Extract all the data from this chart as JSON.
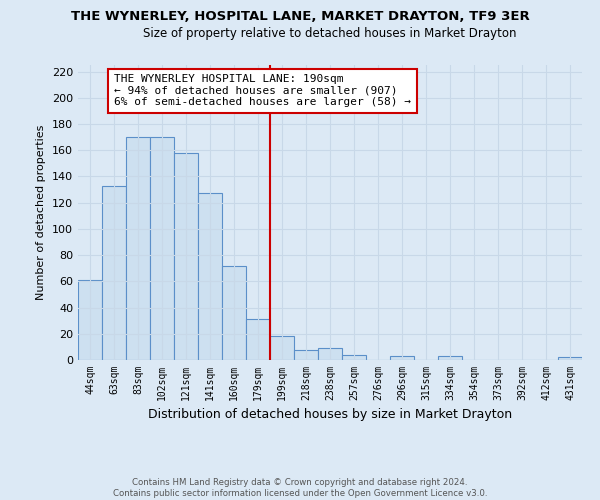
{
  "title": "THE WYNERLEY, HOSPITAL LANE, MARKET DRAYTON, TF9 3ER",
  "subtitle": "Size of property relative to detached houses in Market Drayton",
  "xlabel": "Distribution of detached houses by size in Market Drayton",
  "ylabel": "Number of detached properties",
  "bar_labels": [
    "44sqm",
    "63sqm",
    "83sqm",
    "102sqm",
    "121sqm",
    "141sqm",
    "160sqm",
    "179sqm",
    "199sqm",
    "218sqm",
    "238sqm",
    "257sqm",
    "276sqm",
    "296sqm",
    "315sqm",
    "334sqm",
    "354sqm",
    "373sqm",
    "392sqm",
    "412sqm",
    "431sqm"
  ],
  "bar_values": [
    61,
    133,
    170,
    170,
    158,
    127,
    72,
    31,
    18,
    8,
    9,
    4,
    0,
    3,
    0,
    3,
    0,
    0,
    0,
    0,
    2
  ],
  "bar_color": "#cde0f0",
  "bar_edge_color": "#5b8fc9",
  "reference_line_color": "#cc0000",
  "annotation_text": "THE WYNERLEY HOSPITAL LANE: 190sqm\n← 94% of detached houses are smaller (907)\n6% of semi-detached houses are larger (58) →",
  "annotation_box_facecolor": "white",
  "annotation_box_edgecolor": "#cc0000",
  "ylim": [
    0,
    225
  ],
  "yticks": [
    0,
    20,
    40,
    60,
    80,
    100,
    120,
    140,
    160,
    180,
    200,
    220
  ],
  "footer_line1": "Contains HM Land Registry data © Crown copyright and database right 2024.",
  "footer_line2": "Contains public sector information licensed under the Open Government Licence v3.0.",
  "background_color": "#dce9f5",
  "grid_color": "#c8d8e8"
}
